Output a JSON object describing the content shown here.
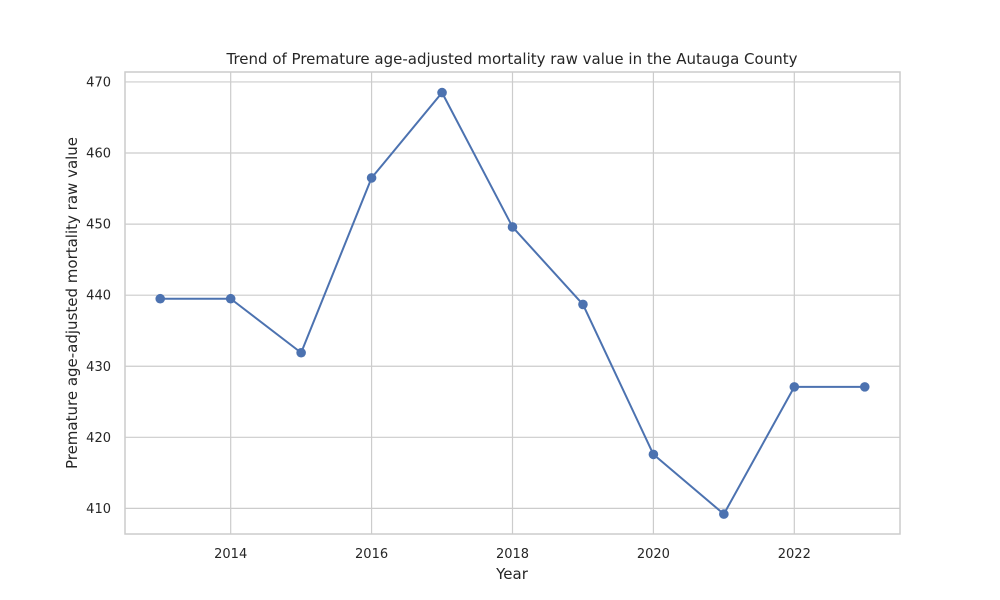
{
  "chart_data": {
    "type": "line",
    "title": "Trend of Premature age-adjusted mortality raw value in the Autauga County",
    "xlabel": "Year",
    "ylabel": "Premature age-adjusted mortality raw value",
    "x": [
      2013,
      2014,
      2015,
      2016,
      2017,
      2018,
      2019,
      2020,
      2021,
      2022,
      2023
    ],
    "series": [
      {
        "values": [
          439.5,
          439.5,
          431.9,
          456.5,
          468.5,
          449.6,
          438.7,
          417.6,
          409.2,
          427.1,
          427.1
        ],
        "color": "#4c72b0"
      }
    ],
    "xlim": [
      2012.5,
      2023.5
    ],
    "ylim": [
      406.4,
      471.4
    ],
    "x_ticks": [
      2014,
      2016,
      2018,
      2020,
      2022
    ],
    "y_ticks": [
      410,
      420,
      430,
      440,
      450,
      460,
      470
    ],
    "grid": true,
    "marker": "circle"
  }
}
